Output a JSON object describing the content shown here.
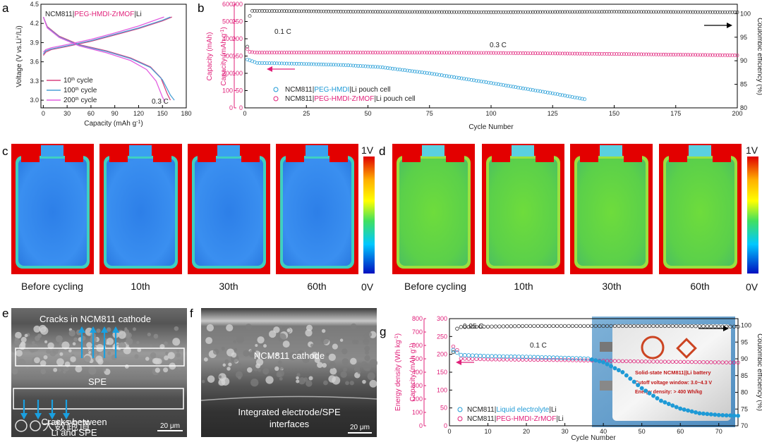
{
  "panels": {
    "a": "a",
    "b": "b",
    "c": "c",
    "d": "d",
    "e": "e",
    "f": "f",
    "g": "g"
  },
  "panel_a": {
    "title_black1": "NCM811|",
    "title_mag": "PEG-HMDI-ZrMOF",
    "title_black2": "|Li",
    "rate": "0.3 C",
    "legend": [
      {
        "label": "10",
        "sup": "th",
        "rest": " cycle",
        "color": "#d8427f"
      },
      {
        "label": "100",
        "sup": "th",
        "rest": " cycle",
        "color": "#4aa0d5"
      },
      {
        "label": "200",
        "sup": "th",
        "rest": " cycle",
        "color": "#e35ee0"
      }
    ]
  },
  "panel_b": {
    "rate_high": "0.1 C",
    "rate_low": "0.3 C",
    "legend": [
      {
        "pre": "NCM811|",
        "mid": "PEG-HMDI",
        "post": "|Li pouch cell",
        "color": "#1e9ad6"
      },
      {
        "pre": "NCM811|",
        "mid": "PEG-HMDI-ZrMOF",
        "post": "|Li pouch cell",
        "color": "#e0217a"
      }
    ],
    "outer_ylabel": "Capacity (mAh)"
  },
  "panel_cd": {
    "colorbar_top": "1V",
    "colorbar_bottom": "0V",
    "labels": [
      "Before cycling",
      "10th",
      "30th",
      "60th"
    ]
  },
  "panel_e": {
    "top": "Cracks  in NCM811 cathode",
    "mid": "SPE",
    "bottom1": "Cracks between",
    "bottom2": "Li and SPE",
    "scale": "20 μm",
    "watermark": "大数跑道"
  },
  "panel_f": {
    "cathode": "NCM811 cathode",
    "bottom1": "Integrated electrode/SPE",
    "bottom2": "interfaces",
    "scale": "20 μm"
  },
  "panel_g": {
    "rate_high": "0.05 C",
    "rate_low": "0.1 C",
    "legend": [
      {
        "pre": "NCM811|",
        "mid": "Liquid electrolyte",
        "post": "|Li",
        "color": "#1e9ad6"
      },
      {
        "pre": "NCM811|",
        "mid": "PEG-HMDI-ZrMOF",
        "post": "|Li",
        "color": "#e0217a"
      }
    ],
    "photo": {
      "line1": "Solid-state NCM811||Li battery",
      "line2": "Cutoff voltage window: 3.0~4.3 V",
      "line3": "Energy density: > 400 Wh/kg"
    }
  },
  "chart_data": [
    {
      "id": "a",
      "type": "line",
      "xlabel": "Capacity (mAh g⁻¹)",
      "ylabel": "Voltage (V vs.Li⁺/Li)",
      "xlim": [
        -3,
        180
      ],
      "ylim": [
        2.88,
        4.5
      ],
      "xticks": [
        0,
        30,
        60,
        90,
        120,
        150,
        180
      ],
      "yticks": [
        3.0,
        3.3,
        3.6,
        3.9,
        4.2,
        4.5
      ],
      "series": [
        {
          "name": "10th cycle",
          "color": "#d8427f",
          "charge": [
            [
              0,
              3.7
            ],
            [
              3,
              3.75
            ],
            [
              10,
              3.79
            ],
            [
              30,
              3.84
            ],
            [
              60,
              3.92
            ],
            [
              90,
              4.02
            ],
            [
              120,
              4.12
            ],
            [
              150,
              4.24
            ],
            [
              162,
              4.3
            ]
          ],
          "discharge": [
            [
              0,
              4.3
            ],
            [
              5,
              4.15
            ],
            [
              20,
              4.0
            ],
            [
              45,
              3.87
            ],
            [
              80,
              3.77
            ],
            [
              110,
              3.66
            ],
            [
              135,
              3.52
            ],
            [
              148,
              3.35
            ],
            [
              156,
              3.1
            ],
            [
              160,
              3.0
            ]
          ]
        },
        {
          "name": "100th cycle",
          "color": "#4aa0d5",
          "charge": [
            [
              0,
              3.72
            ],
            [
              3,
              3.77
            ],
            [
              10,
              3.8
            ],
            [
              30,
              3.85
            ],
            [
              60,
              3.93
            ],
            [
              90,
              4.03
            ],
            [
              120,
              4.13
            ],
            [
              150,
              4.25
            ],
            [
              160,
              4.3
            ]
          ],
          "discharge": [
            [
              0,
              4.3
            ],
            [
              5,
              4.14
            ],
            [
              20,
              3.99
            ],
            [
              45,
              3.86
            ],
            [
              80,
              3.76
            ],
            [
              110,
              3.65
            ],
            [
              135,
              3.51
            ],
            [
              150,
              3.32
            ],
            [
              160,
              3.08
            ],
            [
              165,
              3.0
            ]
          ]
        },
        {
          "name": "200th cycle",
          "color": "#e35ee0",
          "charge": [
            [
              0,
              3.75
            ],
            [
              3,
              3.79
            ],
            [
              10,
              3.82
            ],
            [
              30,
              3.87
            ],
            [
              60,
              3.95
            ],
            [
              90,
              4.05
            ],
            [
              120,
              4.16
            ],
            [
              145,
              4.27
            ],
            [
              152,
              4.3
            ]
          ],
          "discharge": [
            [
              0,
              4.3
            ],
            [
              5,
              4.13
            ],
            [
              20,
              3.98
            ],
            [
              45,
              3.85
            ],
            [
              80,
              3.74
            ],
            [
              110,
              3.62
            ],
            [
              130,
              3.48
            ],
            [
              142,
              3.3
            ],
            [
              150,
              3.05
            ],
            [
              153,
              2.98
            ]
          ]
        }
      ]
    },
    {
      "id": "b",
      "type": "scatter",
      "xlabel": "Cycle Number",
      "ylabel": "Capacity (mAh g⁻¹)",
      "ylabel_right": "Coulombic efficiency (%)",
      "xlim": [
        0,
        200
      ],
      "ylim": [
        0,
        300
      ],
      "ylim_outer": [
        0,
        600
      ],
      "ylim_right": [
        80,
        102
      ],
      "xticks": [
        0,
        25,
        50,
        75,
        100,
        125,
        150,
        175,
        200
      ],
      "yticks": [
        0,
        50,
        100,
        150,
        200,
        250,
        300
      ],
      "yticks_outer": [
        0,
        100,
        200,
        300,
        400,
        500,
        600
      ],
      "yticks_right": [
        80,
        85,
        90,
        95,
        100
      ],
      "series": [
        {
          "name": "NCM811|PEG-HMDI|Li pouch cell capacity",
          "color": "#1e9ad6",
          "points": [
            [
              1,
              140
            ],
            [
              5,
              130
            ],
            [
              20,
              128
            ],
            [
              40,
              124
            ],
            [
              55,
              118
            ],
            [
              75,
              100
            ],
            [
              100,
              72
            ],
            [
              125,
              42
            ],
            [
              138,
              25
            ]
          ]
        },
        {
          "name": "NCM811|PEG-HMDI-ZrMOF|Li pouch cell capacity",
          "color": "#e0217a",
          "points": [
            [
              1,
              170
            ],
            [
              2,
              162
            ],
            [
              5,
              160
            ],
            [
              50,
              160
            ],
            [
              100,
              159
            ],
            [
              150,
              156
            ],
            [
              200,
              152
            ]
          ]
        },
        {
          "name": "Coulombic efficiency",
          "color": "#222",
          "points": [
            [
              1,
              93
            ],
            [
              2,
              99.5
            ],
            [
              3,
              100.6
            ],
            [
              50,
              100.4
            ],
            [
              100,
              100.3
            ],
            [
              150,
              100.4
            ],
            [
              200,
              100.3
            ]
          ]
        }
      ]
    },
    {
      "id": "g",
      "type": "scatter",
      "xlabel": "Cycle Number",
      "ylabel": "Capacity (mAh g⁻¹)",
      "ylabel_outer": "Energy density (Wh kg⁻¹)",
      "ylabel_right": "Coulombic efficiency (%)",
      "xlim": [
        0,
        75
      ],
      "ylim": [
        0,
        300
      ],
      "ylim_outer": [
        0,
        800
      ],
      "ylim_right": [
        70,
        102
      ],
      "xticks": [
        0,
        10,
        20,
        30,
        40,
        50,
        60,
        70
      ],
      "yticks": [
        0,
        50,
        100,
        150,
        200,
        250,
        300
      ],
      "yticks_outer": [
        0,
        100,
        200,
        300,
        400,
        500,
        600,
        700,
        800
      ],
      "yticks_right": [
        70,
        75,
        80,
        85,
        90,
        95,
        100
      ],
      "series": [
        {
          "name": "NCM811|Liquid electrolyte|Li",
          "color": "#1e9ad6",
          "points": [
            [
              1,
              212
            ],
            [
              2,
              205
            ],
            [
              3,
              198
            ],
            [
              10,
              195
            ],
            [
              20,
              193
            ],
            [
              30,
              190
            ],
            [
              36,
              188
            ],
            [
              40,
              178
            ],
            [
              45,
              150
            ],
            [
              50,
              105
            ],
            [
              55,
              70
            ],
            [
              60,
              48
            ],
            [
              65,
              35
            ],
            [
              70,
              30
            ],
            [
              75,
              28
            ]
          ]
        },
        {
          "name": "NCM811|PEG-HMDI-ZrMOF|Li",
          "color": "#e0217a",
          "points": [
            [
              1,
              222
            ],
            [
              2,
              212
            ],
            [
              3,
              188
            ],
            [
              10,
              186
            ],
            [
              20,
              185
            ],
            [
              30,
              184
            ],
            [
              40,
              182
            ],
            [
              50,
              180
            ],
            [
              60,
              179
            ],
            [
              75,
              177
            ]
          ]
        },
        {
          "name": "Coulombic efficiency",
          "color": "#222",
          "points": [
            [
              1,
              92
            ],
            [
              2,
              99
            ],
            [
              3,
              99.5
            ],
            [
              20,
              99.8
            ],
            [
              40,
              99.8
            ],
            [
              60,
              99.8
            ],
            [
              75,
              99.6
            ]
          ]
        }
      ]
    }
  ]
}
